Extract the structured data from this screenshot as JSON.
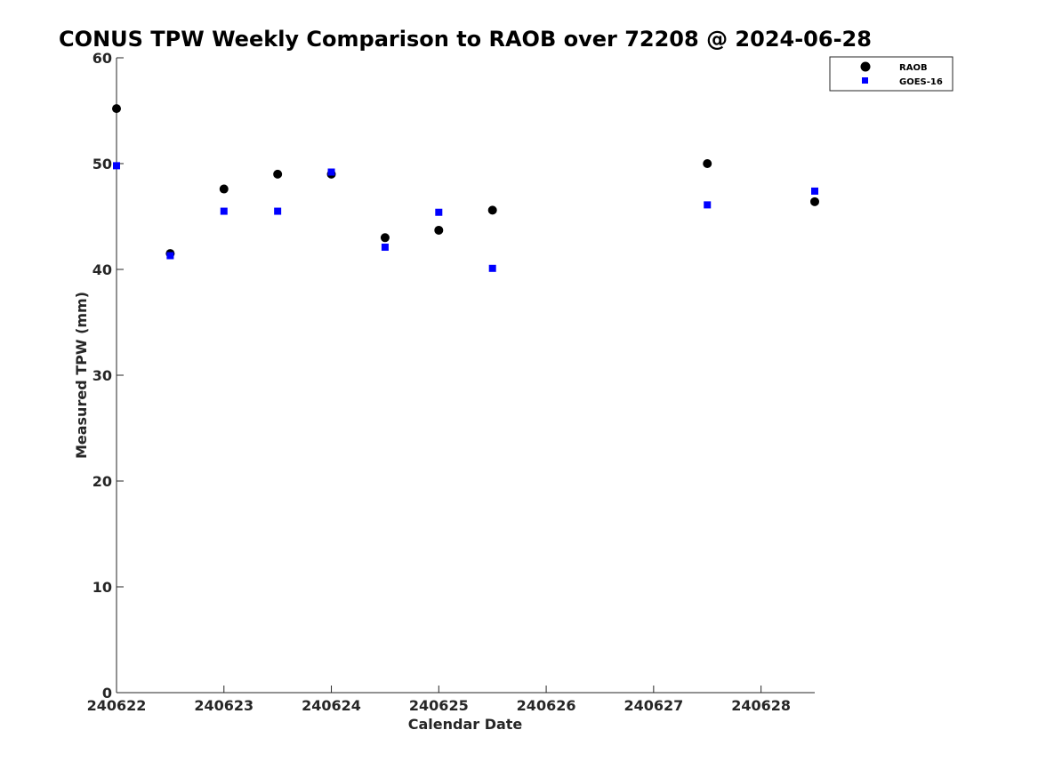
{
  "chart_data": {
    "type": "scatter",
    "title": "CONUS TPW Weekly Comparison to RAOB over 72208 @ 2024-06-28",
    "xlabel": "Calendar Date",
    "ylabel": "Measured TPW (mm)",
    "xlim": [
      240622,
      240628.5
    ],
    "ylim": [
      0,
      60
    ],
    "xticks": [
      240622,
      240623,
      240624,
      240625,
      240626,
      240627,
      240628
    ],
    "xtick_labels": [
      "240622",
      "240623",
      "240624",
      "240625",
      "240626",
      "240627",
      "240628"
    ],
    "yticks": [
      0,
      10,
      20,
      30,
      40,
      50,
      60
    ],
    "ytick_labels": [
      "0",
      "10",
      "20",
      "30",
      "40",
      "50",
      "60"
    ],
    "grid": false,
    "legend_position": "top-right",
    "series": [
      {
        "name": "RAOB",
        "marker": "circle",
        "color": "#000000",
        "points": [
          {
            "x": 240622.0,
            "y": 55.2
          },
          {
            "x": 240622.5,
            "y": 41.5
          },
          {
            "x": 240623.0,
            "y": 47.6
          },
          {
            "x": 240623.5,
            "y": 49.0
          },
          {
            "x": 240624.0,
            "y": 49.0
          },
          {
            "x": 240624.5,
            "y": 43.0
          },
          {
            "x": 240625.0,
            "y": 43.7
          },
          {
            "x": 240625.5,
            "y": 45.6
          },
          {
            "x": 240627.5,
            "y": 50.0
          },
          {
            "x": 240628.5,
            "y": 46.4
          }
        ]
      },
      {
        "name": "GOES-16",
        "marker": "square",
        "color": "#0000ff",
        "points": [
          {
            "x": 240622.0,
            "y": 49.8
          },
          {
            "x": 240622.5,
            "y": 41.3
          },
          {
            "x": 240623.0,
            "y": 45.5
          },
          {
            "x": 240623.5,
            "y": 45.5
          },
          {
            "x": 240624.0,
            "y": 49.2
          },
          {
            "x": 240624.5,
            "y": 42.1
          },
          {
            "x": 240625.0,
            "y": 45.4
          },
          {
            "x": 240625.5,
            "y": 40.1
          },
          {
            "x": 240627.5,
            "y": 46.1
          },
          {
            "x": 240628.5,
            "y": 47.4
          }
        ]
      }
    ]
  }
}
